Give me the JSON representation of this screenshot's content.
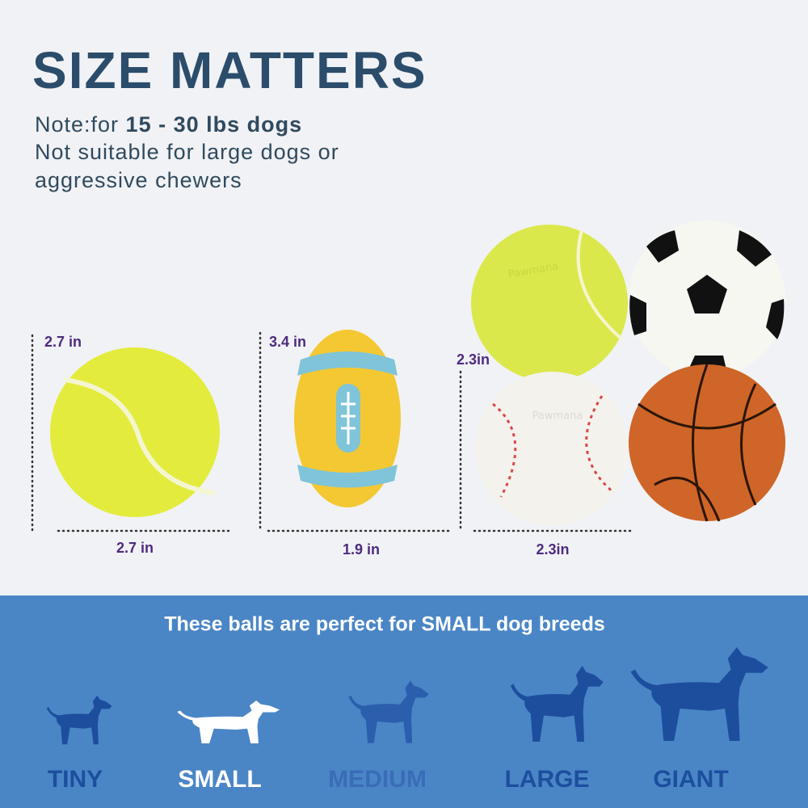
{
  "header": {
    "title": "SIZE MATTERS",
    "note_prefix": "Note:for ",
    "note_bold": "15 - 30 lbs dogs",
    "warning_lines": [
      "Not suitable for large dogs or",
      "aggressive chewers"
    ]
  },
  "brand": "Pawmana",
  "measurements": {
    "tennis_height": "2.7 in",
    "tennis_width": "2.7 in",
    "football_height": "3.4 in",
    "football_width": "1.9 in",
    "set_height": "2.3in",
    "set_width": "2.3in"
  },
  "banner": {
    "text": "These balls are perfect for SMALL dog breeds",
    "sizes": [
      "TINY",
      "SMALL",
      "MEDIUM",
      "LARGE",
      "GIANT"
    ]
  }
}
